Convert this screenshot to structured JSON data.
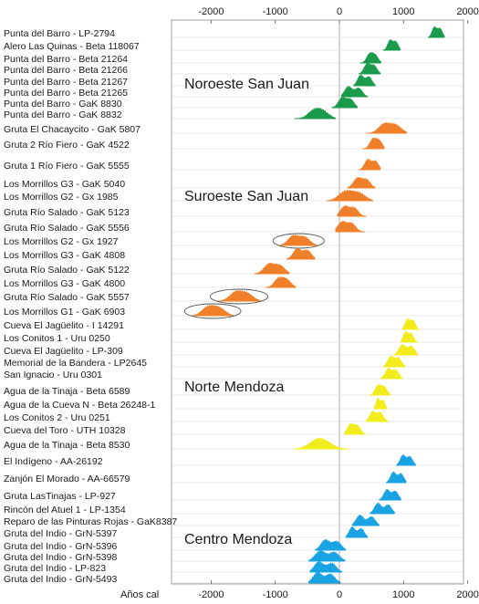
{
  "chart_data": {
    "type": "area",
    "xlabel": "Años cal",
    "xlim": [
      -2600,
      2000
    ],
    "ticks": [
      -2000,
      -1000,
      0,
      1000,
      2000
    ],
    "tick_labels": [
      "-2000",
      "-1000",
      "0",
      "1000",
      "2000"
    ],
    "groups": [
      {
        "name": "Noroeste San Juan",
        "color": "#1a9b4b"
      },
      {
        "name": "Suroeste San Juan",
        "color": "#f07f2a"
      },
      {
        "name": "Norte Mendoza",
        "color": "#f3ec1c"
      },
      {
        "name": "Centro Mendoza",
        "color": "#1aa3e3"
      }
    ],
    "series": [
      {
        "name": "Punta del Barro - LP-2794",
        "group": 0,
        "from": 1380,
        "to": 1640,
        "peaks": [
          1480,
          1570
        ]
      },
      {
        "name": "Alero Las Quinas - Beta 118067",
        "group": 0,
        "from": 680,
        "to": 950,
        "peaks": [
          790,
          880
        ]
      },
      {
        "name": "Punta del Barro - Beta 21264",
        "group": 0,
        "from": 320,
        "to": 650,
        "peaks": [
          470,
          560
        ]
      },
      {
        "name": "Punta del Barro - Beta 21266",
        "group": 0,
        "from": 300,
        "to": 640,
        "peaks": [
          430,
          540
        ]
      },
      {
        "name": "Punta del Barro - Beta 21267",
        "group": 0,
        "from": 220,
        "to": 560,
        "peaks": [
          330,
          460
        ]
      },
      {
        "name": "Punta del Barro - Beta 21265",
        "group": 0,
        "from": 30,
        "to": 440,
        "peaks": [
          140,
          300
        ]
      },
      {
        "name": "Punta del Barro - GaK 8830",
        "group": 0,
        "from": -120,
        "to": 280,
        "peaks": [
          40,
          170
        ]
      },
      {
        "name": "Punta del Barro - GaK 8832",
        "group": 0,
        "from": -700,
        "to": -60,
        "peaks": [
          -400,
          -250
        ]
      },
      {
        "name": "Gruta El Chacaycito - GaK 5807",
        "group": 1,
        "from": 420,
        "to": 1050,
        "peaks": [
          700,
          880
        ]
      },
      {
        "name": "Gruta 2 Río Fiero - GaK 4522",
        "group": 1,
        "from": 360,
        "to": 700,
        "peaks": [
          520,
          620
        ]
      },
      {
        "name": "Gruta 1 Río Fiero - GaK 5555",
        "group": 1,
        "from": 300,
        "to": 640,
        "peaks": [
          440,
          560
        ]
      },
      {
        "name": "Los Morrillos G3 - GaK 5040",
        "group": 1,
        "from": 120,
        "to": 560,
        "peaks": [
          280,
          420
        ]
      },
      {
        "name": "Los Morrillos G2 - Gx 1985",
        "group": 1,
        "from": -200,
        "to": 520,
        "peaks": [
          90,
          300
        ]
      },
      {
        "name": "Gruta Río Salado - GaK 5123",
        "group": 1,
        "from": -30,
        "to": 420,
        "peaks": [
          80,
          230
        ]
      },
      {
        "name": "Gruta Río Salado - GaK 5556",
        "group": 1,
        "from": -60,
        "to": 400,
        "peaks": [
          40,
          190
        ]
      },
      {
        "name": "Los Morrillos G2 - Gx 1927",
        "group": 1,
        "from": -920,
        "to": -350,
        "peaks": [
          -720,
          -540
        ]
      },
      {
        "name": "Los Morrillos G3 - GaK 4808",
        "group": 1,
        "from": -820,
        "to": -380,
        "peaks": [
          -660,
          -500
        ]
      },
      {
        "name": "Gruta Río Salado - GaK 5122",
        "group": 1,
        "from": -1330,
        "to": -780,
        "peaks": [
          -1100,
          -930
        ]
      },
      {
        "name": "Los Morrillos G3 - GaK 4800",
        "group": 1,
        "from": -1150,
        "to": -680,
        "peaks": [
          -950,
          -820
        ]
      },
      {
        "name": "Gruta Río Salado - GaK 5557",
        "group": 1,
        "from": -1900,
        "to": -1230,
        "peaks": [
          -1620,
          -1440
        ]
      },
      {
        "name": "Los Morrillos G1 - GaK 6903",
        "group": 1,
        "from": -2300,
        "to": -1650,
        "peaks": [
          -2050,
          -1870
        ]
      },
      {
        "name": "Cueva El Jagüelito - I 14291",
        "group": 2,
        "from": 980,
        "to": 1240,
        "peaks": [
          1060,
          1150
        ]
      },
      {
        "name": "Los Conitos 1 - Uru 0250",
        "group": 2,
        "from": 960,
        "to": 1220,
        "peaks": [
          1030,
          1120
        ]
      },
      {
        "name": "Cueva El Jagüelito - LP-309",
        "group": 2,
        "from": 850,
        "to": 1220,
        "peaks": [
          980,
          1120
        ]
      },
      {
        "name": "Memorial de la Bandera - LP2645",
        "group": 2,
        "from": 680,
        "to": 1020,
        "peaks": [
          800,
          920
        ]
      },
      {
        "name": "San Ignacio - Uru 0301",
        "group": 2,
        "from": 640,
        "to": 980,
        "peaks": [
          760,
          880
        ]
      },
      {
        "name": "Agua de la Tinaja - Beta 6589",
        "group": 2,
        "from": 480,
        "to": 800,
        "peaks": [
          600,
          700
        ]
      },
      {
        "name": "Agua de la Cueva N - Beta 26248-1",
        "group": 2,
        "from": 540,
        "to": 740,
        "peaks": [
          600,
          680
        ]
      },
      {
        "name": "Los Conitos 2 - Uru 0251",
        "group": 2,
        "from": 420,
        "to": 760,
        "peaks": [
          520,
          640
        ]
      },
      {
        "name": "Cueva del Toro - UTH 10328",
        "group": 2,
        "from": 80,
        "to": 420,
        "peaks": [
          170,
          280
        ]
      },
      {
        "name": "Agua de la Tinaja - Beta 8530",
        "group": 2,
        "from": -700,
        "to": 150,
        "peaks": [
          -370,
          -220
        ]
      },
      {
        "name": "El Indígeno - AA-26192",
        "group": 3,
        "from": 890,
        "to": 1190,
        "peaks": [
          990,
          1100
        ]
      },
      {
        "name": "Zanjón El Morado - AA-66579",
        "group": 3,
        "from": 730,
        "to": 1040,
        "peaks": [
          840,
          960
        ]
      },
      {
        "name": "Gruta LasTinajas - LP-927",
        "group": 3,
        "from": 620,
        "to": 960,
        "peaks": [
          740,
          870
        ]
      },
      {
        "name": "Rincón del Atuel 1 - LP-1354",
        "group": 3,
        "from": 480,
        "to": 860,
        "peaks": [
          600,
          760
        ]
      },
      {
        "name": "Reparo de las Pinturas Rojas - GaK8387",
        "group": 3,
        "from": 200,
        "to": 620,
        "peaks": [
          320,
          500
        ]
      },
      {
        "name": "Gruta del Indio - GrN-5397",
        "group": 3,
        "from": 100,
        "to": 440,
        "peaks": [
          200,
          340
        ]
      },
      {
        "name": "Gruta del Indio - GrN-5396",
        "group": 3,
        "from": -380,
        "to": 100,
        "peaks": [
          -220,
          -40
        ]
      },
      {
        "name": "Gruta del Indio - GrN-5398",
        "group": 3,
        "from": -480,
        "to": 90,
        "peaks": [
          -300,
          -80
        ]
      },
      {
        "name": "Gruta del Indio - LP-823",
        "group": 3,
        "from": -460,
        "to": 40,
        "peaks": [
          -320,
          -120
        ]
      },
      {
        "name": "Gruta del Indio - GrN-5493",
        "group": 3,
        "from": -480,
        "to": 20,
        "peaks": [
          -340,
          -140
        ]
      }
    ],
    "highlighted": [
      "Los Morrillos G2 - Gx 1927",
      "Gruta Río Salado - GaK 5557",
      "Los Morrillos G1 - GaK 6903"
    ]
  }
}
